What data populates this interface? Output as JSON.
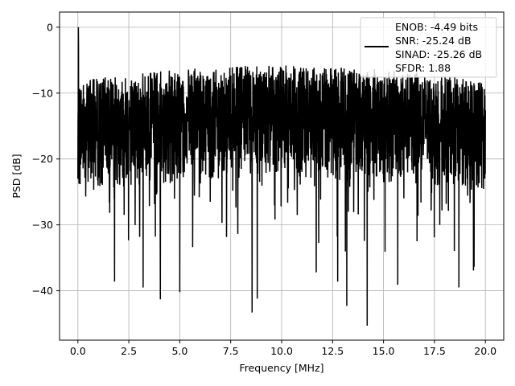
{
  "chart_data": {
    "type": "line",
    "title": "",
    "xlabel": "Frequency [MHz]",
    "ylabel": "PSD [dB]",
    "xlim": [
      -0.9,
      20.9
    ],
    "ylim": [
      -47.5,
      2.3
    ],
    "xticks": [
      0.0,
      2.5,
      5.0,
      7.5,
      10.0,
      12.5,
      15.0,
      17.5,
      20.0
    ],
    "xtick_labels": [
      "0.0",
      "2.5",
      "5.0",
      "7.5",
      "10.0",
      "12.5",
      "15.0",
      "17.5",
      "20.0"
    ],
    "yticks": [
      0,
      -10,
      -20,
      -30,
      -40
    ],
    "ytick_labels": [
      "0",
      "−10",
      "−20",
      "−30",
      "−40"
    ],
    "grid": true,
    "legend_position": "top-right",
    "legend_entries": [
      "ENOB: -4.49 bits",
      "SNR: -25.24 dB",
      "SINAD: -25.26 dB",
      "SFDR: 1.88"
    ],
    "series": [
      {
        "color": "#000000",
        "x_range": [
          0,
          20
        ],
        "peak": {
          "x": 0.02,
          "y": 0.0
        },
        "typical_band_db": [
          -25,
          -8
        ],
        "deep_nulls": [
          {
            "x": 1.8,
            "y": -38.6
          },
          {
            "x": 3.2,
            "y": -39.5
          },
          {
            "x": 4.05,
            "y": -41.3
          },
          {
            "x": 5.0,
            "y": -40.2
          },
          {
            "x": 8.55,
            "y": -43.3
          },
          {
            "x": 8.8,
            "y": -41.2
          },
          {
            "x": 11.7,
            "y": -37.2
          },
          {
            "x": 12.75,
            "y": -38.6
          },
          {
            "x": 13.2,
            "y": -42.3
          },
          {
            "x": 14.2,
            "y": -45.3
          },
          {
            "x": 15.7,
            "y": -39.1
          },
          {
            "x": 18.7,
            "y": -39.5
          }
        ]
      }
    ]
  },
  "colors": {
    "line": "#000000",
    "grid": "#b0b0b0",
    "background": "#ffffff"
  }
}
